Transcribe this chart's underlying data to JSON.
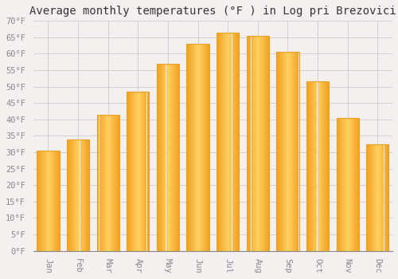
{
  "title": "Average monthly temperatures (°F ) in Log pri Brezovici",
  "months": [
    "Jan",
    "Feb",
    "Mar",
    "Apr",
    "May",
    "Jun",
    "Jul",
    "Aug",
    "Sep",
    "Oct",
    "Nov",
    "Dec"
  ],
  "values": [
    30.5,
    34.0,
    41.5,
    48.5,
    57.0,
    63.0,
    66.5,
    65.5,
    60.5,
    51.5,
    40.5,
    32.5
  ],
  "bar_color_center": "#FFD060",
  "bar_color_edge": "#F0A020",
  "ylim": [
    0,
    70
  ],
  "yticks": [
    0,
    5,
    10,
    15,
    20,
    25,
    30,
    35,
    40,
    45,
    50,
    55,
    60,
    65,
    70
  ],
  "background_color": "#F5F0F0",
  "plot_bg_color": "#F5F0F0",
  "grid_color": "#cccccc",
  "title_fontsize": 10,
  "tick_fontsize": 7.5,
  "font_family": "monospace",
  "bar_width": 0.75
}
